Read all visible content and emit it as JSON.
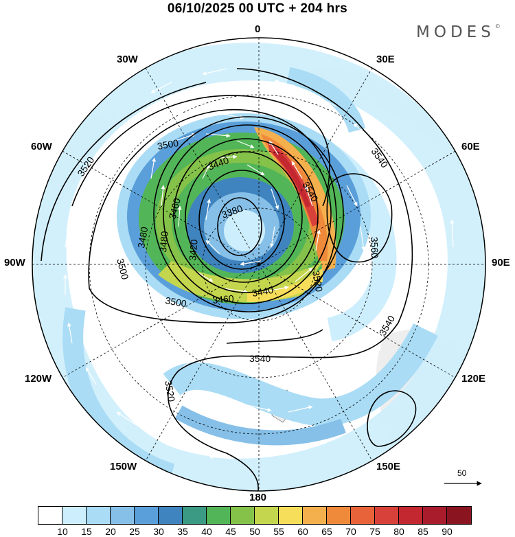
{
  "title": "06/10/2025  00 UTC  + 204 hrs",
  "brand": "MODES",
  "brand_mark": "©",
  "longitude_labels": {
    "n0": "0",
    "e30": "30E",
    "e60": "60E",
    "e90": "90E",
    "e120": "120E",
    "e150": "150E",
    "s180": "180",
    "w150": "150W",
    "w120": "120W",
    "w90": "90W",
    "w60": "60W",
    "w30": "30W"
  },
  "contour_labels": [
    "3520",
    "3500",
    "3440",
    "3460",
    "3380",
    "3480",
    "3500",
    "3480",
    "3420",
    "3500",
    "3460",
    "3440",
    "3540",
    "3540",
    "3520",
    "3560",
    "3540",
    "3540",
    "3520"
  ],
  "vector_reference": {
    "label": "50"
  },
  "colorbar": {
    "colors": [
      "#ffffff",
      "#cdeefc",
      "#aadcf5",
      "#86c0e8",
      "#5a9fd9",
      "#3f84bf",
      "#3a9a84",
      "#52b557",
      "#84c24a",
      "#c3d64e",
      "#f6de5a",
      "#f5b04e",
      "#f08a3b",
      "#e9633a",
      "#d8413a",
      "#c3272f",
      "#a81c2c",
      "#8a1520"
    ],
    "ticks": [
      "10",
      "15",
      "20",
      "25",
      "30",
      "35",
      "40",
      "45",
      "50",
      "55",
      "60",
      "65",
      "70",
      "75",
      "80",
      "85",
      "90"
    ]
  }
}
